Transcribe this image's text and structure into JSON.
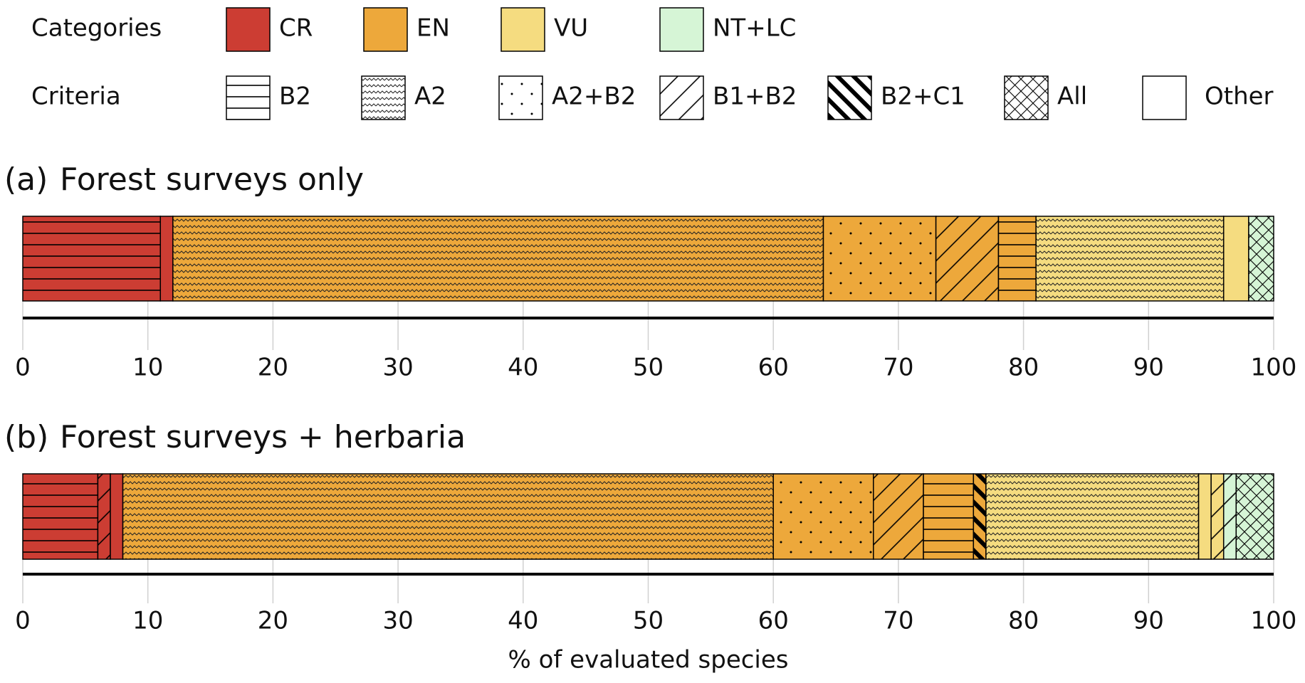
{
  "legend": {
    "categories_label": "Categories",
    "categories": [
      {
        "name": "CR",
        "color": "#cc3d33"
      },
      {
        "name": "EN",
        "color": "#eda83b"
      },
      {
        "name": "VU",
        "color": "#f5dc80"
      },
      {
        "name": "NT+LC",
        "color": "#d6f5d6"
      }
    ],
    "criteria_label": "Criteria",
    "criteria": [
      {
        "name": "B2",
        "pattern": "horizontal"
      },
      {
        "name": "A2",
        "pattern": "wave"
      },
      {
        "name": "A2+B2",
        "pattern": "dots"
      },
      {
        "name": "B1+B2",
        "pattern": "diagonal"
      },
      {
        "name": "B2+C1",
        "pattern": "thick-diagonal"
      },
      {
        "name": "All",
        "pattern": "crosshatch"
      },
      {
        "name": "Other",
        "pattern": "none"
      }
    ]
  },
  "chart_data": [
    {
      "type": "bar",
      "panel": "(a)",
      "title": "Forest surveys only",
      "xlim": [
        0,
        100
      ],
      "xticks": [
        0,
        10,
        20,
        30,
        40,
        50,
        60,
        70,
        80,
        90,
        100
      ],
      "grid": true,
      "segments": [
        {
          "category": "CR",
          "criterion": "B2",
          "value": 11
        },
        {
          "category": "CR",
          "criterion": "Other",
          "value": 1
        },
        {
          "category": "EN",
          "criterion": "A2",
          "value": 52
        },
        {
          "category": "EN",
          "criterion": "A2+B2",
          "value": 9
        },
        {
          "category": "EN",
          "criterion": "B1+B2",
          "value": 5
        },
        {
          "category": "EN",
          "criterion": "B2",
          "value": 3
        },
        {
          "category": "VU",
          "criterion": "A2",
          "value": 15
        },
        {
          "category": "VU",
          "criterion": "Other",
          "value": 2
        },
        {
          "category": "NT+LC",
          "criterion": "All",
          "value": 2
        }
      ]
    },
    {
      "type": "bar",
      "panel": "(b)",
      "title": "Forest surveys + herbaria",
      "xlabel": "% of evaluated species",
      "xlim": [
        0,
        100
      ],
      "xticks": [
        0,
        10,
        20,
        30,
        40,
        50,
        60,
        70,
        80,
        90,
        100
      ],
      "grid": true,
      "segments": [
        {
          "category": "CR",
          "criterion": "B2",
          "value": 6
        },
        {
          "category": "CR",
          "criterion": "B1+B2",
          "value": 1
        },
        {
          "category": "CR",
          "criterion": "Other",
          "value": 1
        },
        {
          "category": "EN",
          "criterion": "A2",
          "value": 52
        },
        {
          "category": "EN",
          "criterion": "A2+B2",
          "value": 8
        },
        {
          "category": "EN",
          "criterion": "B1+B2",
          "value": 4
        },
        {
          "category": "EN",
          "criterion": "B2",
          "value": 4
        },
        {
          "category": "EN",
          "criterion": "B2+C1",
          "value": 1
        },
        {
          "category": "VU",
          "criterion": "A2",
          "value": 17
        },
        {
          "category": "VU",
          "criterion": "Other",
          "value": 1
        },
        {
          "category": "VU",
          "criterion": "B1+B2",
          "value": 1
        },
        {
          "category": "NT+LC",
          "criterion": "B1+B2",
          "value": 1
        },
        {
          "category": "NT+LC",
          "criterion": "All",
          "value": 3
        }
      ]
    }
  ]
}
